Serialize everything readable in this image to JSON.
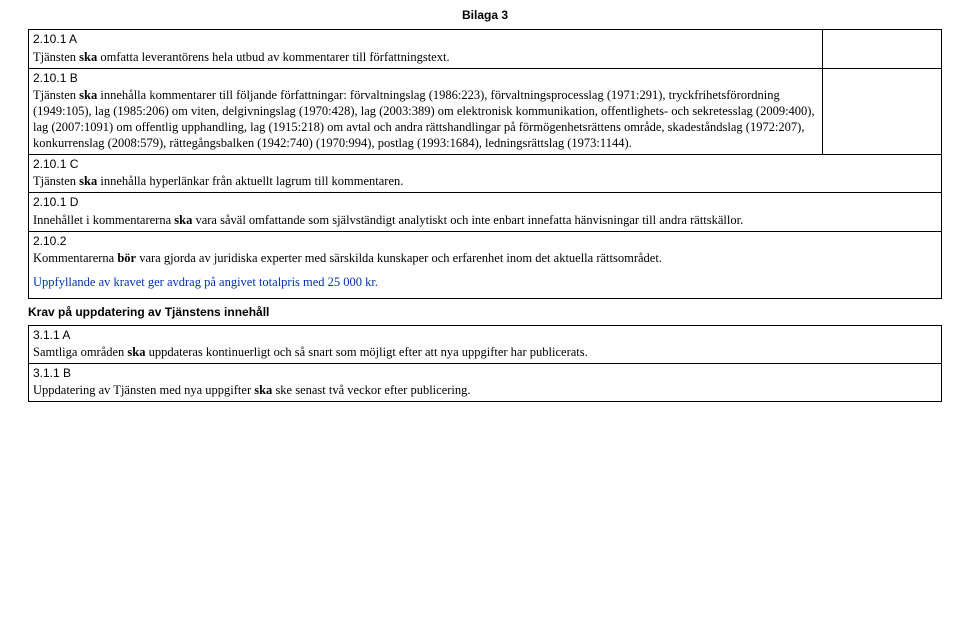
{
  "header": "Bilaga 3",
  "rows": [
    {
      "head": "2.10.1 A",
      "body_parts": [
        {
          "t": "Tjänsten ",
          "b": false
        },
        {
          "t": "ska",
          "b": true
        },
        {
          "t": " omfatta leverantörens hela utbud av kommentarer till författningstext.",
          "b": false
        }
      ],
      "right": true
    },
    {
      "head": "2.10.1 B",
      "body_parts": [
        {
          "t": "Tjänsten ",
          "b": false
        },
        {
          "t": "ska",
          "b": true
        },
        {
          "t": " innehålla kommentarer till följande författningar: förvaltningslag (1986:223), förvaltningsprocesslag (1971:291), tryckfrihetsförordning (1949:105), lag (1985:206) om viten, delgivningslag (1970:428), lag (2003:389) om elektronisk kommunikation, offentlighets- och sekretesslag (2009:400), lag (2007:1091) om offentlig upphandling, lag (1915:218) om avtal och andra rättshandlingar på förmögenhetsrättens område, skadeståndslag (1972:207), konkurrenslag (2008:579), rättegångsbalken (1942:740) (1970:994), postlag (1993:1684), ledningsrättslag (1973:1144).",
          "b": false
        }
      ],
      "right": true
    },
    {
      "head": "2.10.1 C",
      "body_parts": [
        {
          "t": "Tjänsten ",
          "b": false
        },
        {
          "t": "ska",
          "b": true
        },
        {
          "t": " innehålla hyperlänkar från aktuellt lagrum till kommentaren.",
          "b": false
        }
      ],
      "right": false
    },
    {
      "head": "2.10.1 D",
      "body_parts": [
        {
          "t": "Innehållet i kommentarerna ",
          "b": false
        },
        {
          "t": "ska",
          "b": true
        },
        {
          "t": " vara såväl omfattande som självständigt analytiskt och inte enbart innefatta hänvisningar till andra rättskällor.",
          "b": false
        }
      ],
      "right": false
    },
    {
      "head": "2.10.2",
      "body_parts": [
        {
          "t": "Kommentarerna ",
          "b": false
        },
        {
          "t": "bör",
          "b": true
        },
        {
          "t": " vara gjorda av juridiska experter med särskilda kunskaper och erfarenhet inom det aktuella rättsområdet.",
          "b": false
        }
      ],
      "right": false,
      "extra_blue": "Uppfyllande av kravet ger avdrag på angivet totalpris med 25 000 kr."
    }
  ],
  "section2_title": "Krav på uppdatering av Tjänstens innehåll",
  "rows2": [
    {
      "head": "3.1.1 A",
      "body_parts": [
        {
          "t": "Samtliga områden ",
          "b": false
        },
        {
          "t": "ska",
          "b": true
        },
        {
          "t": " uppdateras kontinuerligt och så snart som möjligt efter att nya uppgifter har publicerats.",
          "b": false
        }
      ],
      "right": false
    },
    {
      "head": "3.1.1 B",
      "body_parts": [
        {
          "t": "Uppdatering av Tjänsten med nya uppgifter ",
          "b": false
        },
        {
          "t": "ska",
          "b": true
        },
        {
          "t": " ske senast två veckor efter publicering.",
          "b": false
        }
      ],
      "right": false
    }
  ]
}
